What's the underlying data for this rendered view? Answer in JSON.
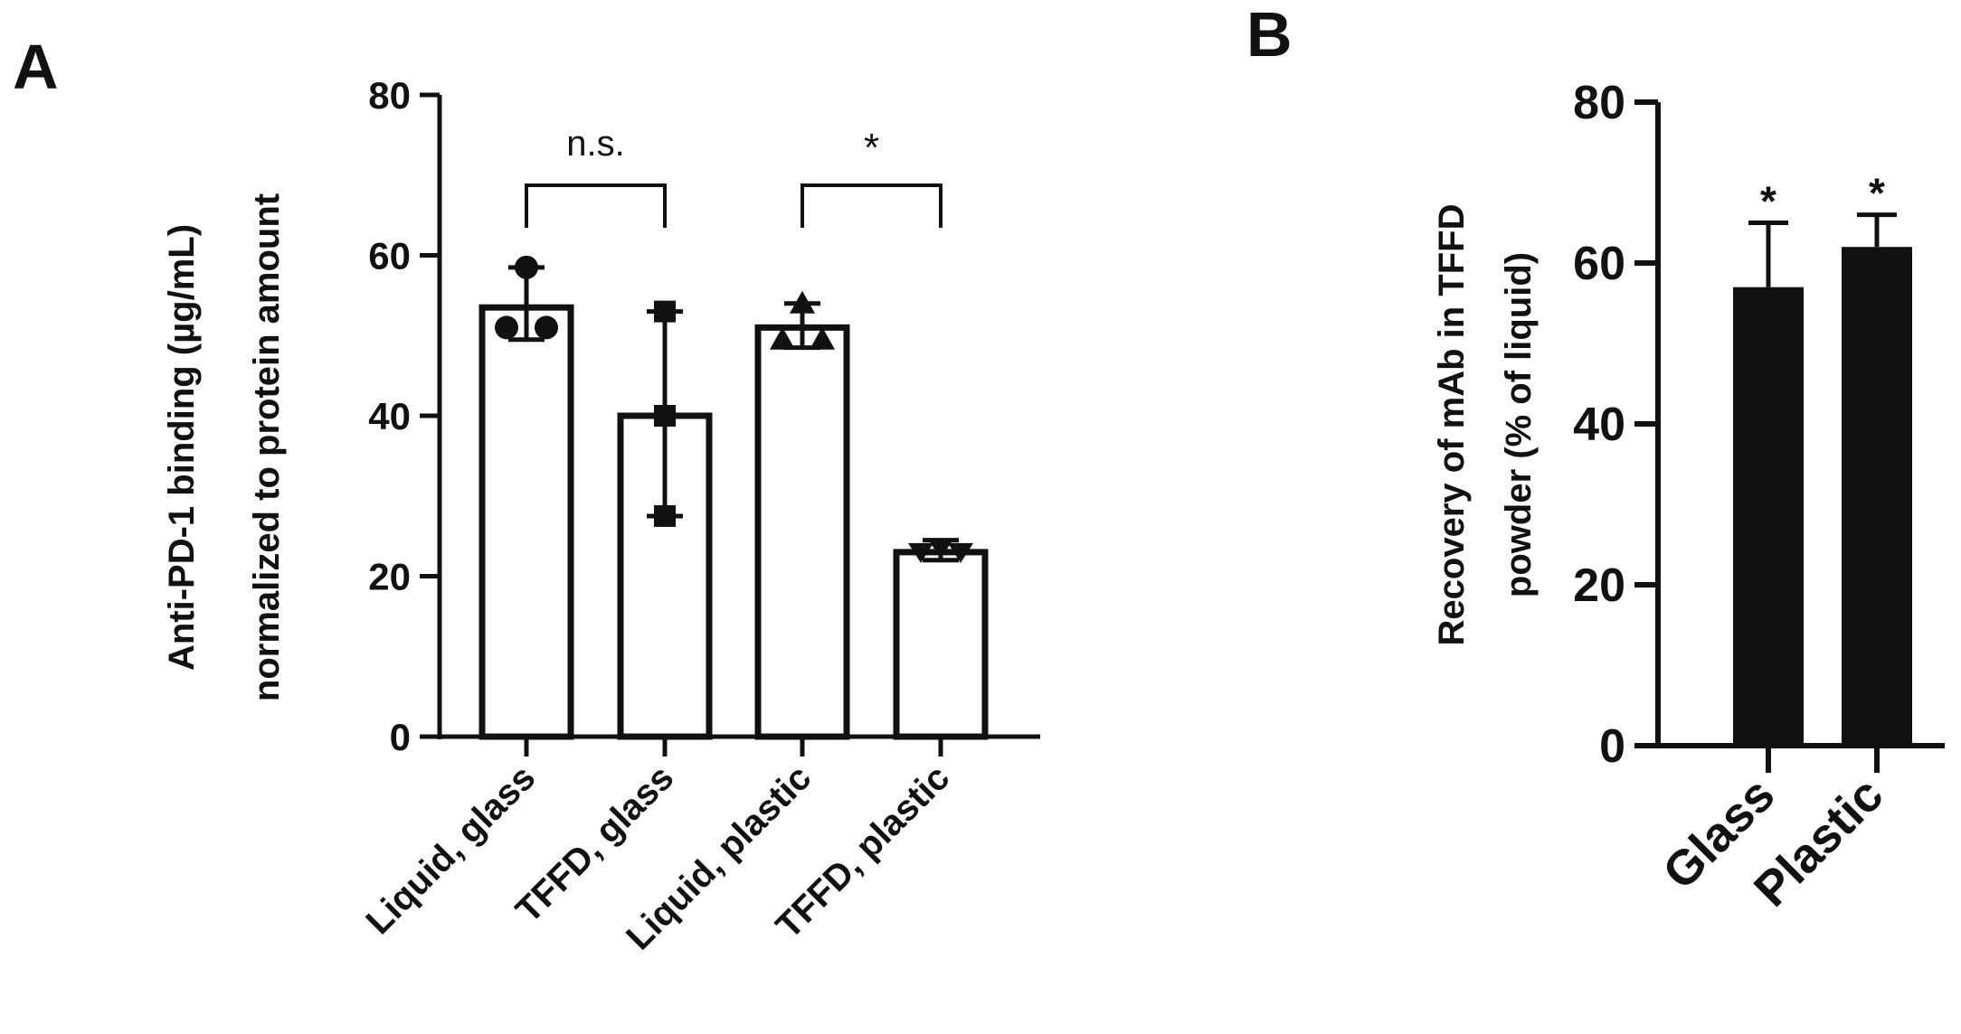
{
  "panels": {
    "a": {
      "letter": "A"
    },
    "b": {
      "letter": "B"
    }
  },
  "colors": {
    "ink": "#111111",
    "bar_fill_a": "#ffffff",
    "bar_fill_b": "#111111"
  },
  "chart_data": [
    {
      "type": "bar",
      "panel": "A",
      "categories": [
        "Liquid, glass",
        "TFFD, glass",
        "Liquid, plastic",
        "TFFD, plastic"
      ],
      "values": [
        53.5,
        40,
        51,
        23
      ],
      "error_upper": [
        58.5,
        53,
        54,
        24.5
      ],
      "error_lower": [
        49.5,
        27.5,
        48.5,
        22
      ],
      "points": [
        {
          "category": "Liquid, glass",
          "marker": "circle",
          "values": [
            58.5,
            51,
            51
          ]
        },
        {
          "category": "TFFD, glass",
          "marker": "square",
          "values": [
            53,
            40,
            27.5
          ]
        },
        {
          "category": "Liquid, plastic",
          "marker": "triangle-up",
          "values": [
            54,
            49.5,
            49.5
          ]
        },
        {
          "category": "TFFD, plastic",
          "marker": "triangle-down",
          "values": [
            23.5,
            23,
            23
          ]
        }
      ],
      "ylabel_line1": "Anti-PD-1 binding (µg/mL)",
      "ylabel_line2": "normalized to protein amount",
      "ylim": [
        0,
        80
      ],
      "yticks": [
        0,
        20,
        40,
        60,
        80
      ],
      "comparisons": [
        {
          "from": "Liquid, glass",
          "to": "TFFD, glass",
          "label": "n.s."
        },
        {
          "from": "Liquid, plastic",
          "to": "TFFD, plastic",
          "label": "*"
        }
      ]
    },
    {
      "type": "bar",
      "panel": "B",
      "categories": [
        "Glass",
        "Plastic"
      ],
      "values": [
        57,
        62
      ],
      "error_upper": [
        65,
        66
      ],
      "significance": [
        "*",
        "*"
      ],
      "ylabel_line1": "Recovery of mAb in TFFD",
      "ylabel_line2": "powder (% of liquid)",
      "ylim": [
        0,
        80
      ],
      "yticks": [
        0,
        20,
        40,
        60,
        80
      ]
    }
  ]
}
